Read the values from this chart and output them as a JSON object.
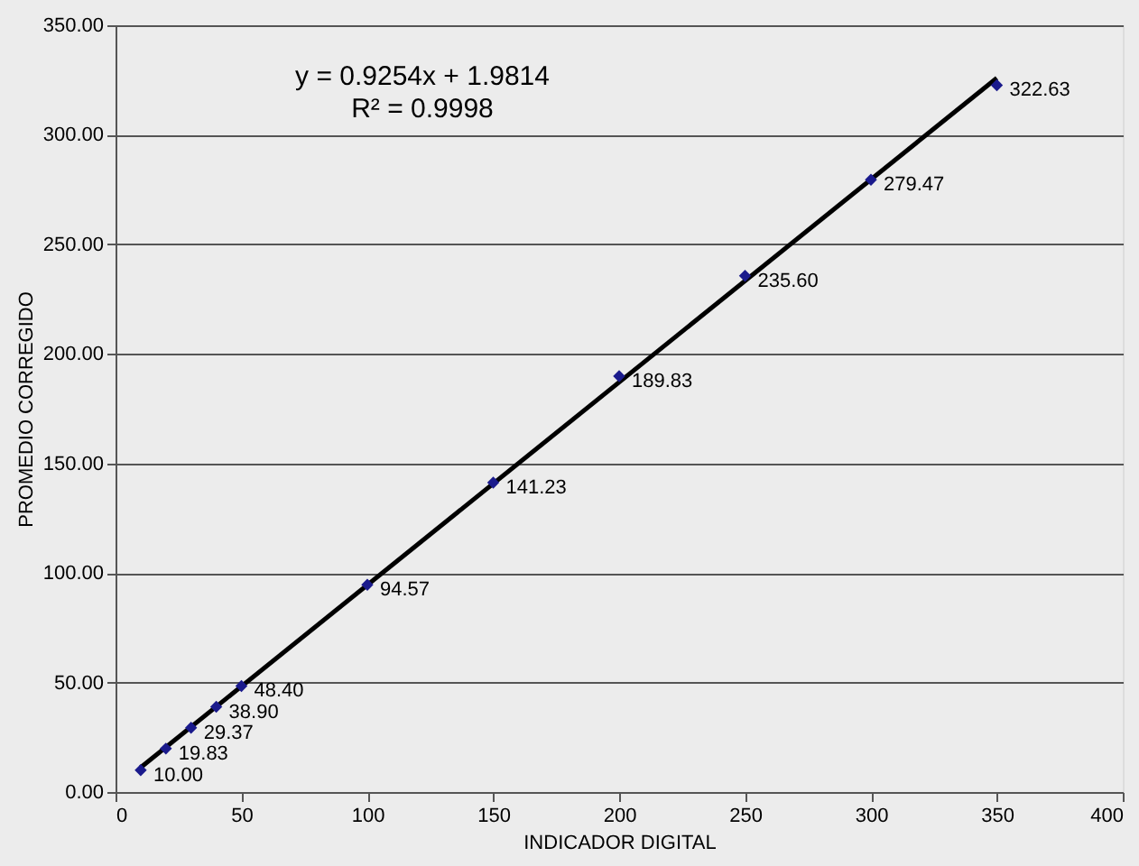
{
  "chart_data": {
    "type": "scatter",
    "xlabel": "INDICADOR DIGITAL",
    "ylabel": "PROMEDIO CORREGIDO",
    "xlim": [
      0,
      400
    ],
    "xticks": [
      0,
      50,
      100,
      150,
      200,
      250,
      300,
      350,
      400
    ],
    "ylim": [
      0,
      350
    ],
    "yticks": [
      {
        "value": 0,
        "label": "0.00"
      },
      {
        "value": 50,
        "label": "50.00"
      },
      {
        "value": 100,
        "label": "100.00"
      },
      {
        "value": 150,
        "label": "150.00"
      },
      {
        "value": 200,
        "label": "200.00"
      },
      {
        "value": 250,
        "label": "250.00"
      },
      {
        "value": 300,
        "label": "300.00"
      },
      {
        "value": 350,
        "label": "350.00"
      }
    ],
    "grid": "y",
    "series": [
      {
        "type": "line",
        "color": "#000000",
        "x": [
          10,
          350
        ],
        "values": [
          11.2,
          325.9
        ],
        "marker": "none",
        "line_style": "solid"
      },
      {
        "color": "#1a1a8c",
        "marker": "diamond",
        "x": [
          10,
          20,
          30,
          40,
          50,
          100,
          150,
          200,
          250,
          300,
          350
        ],
        "values": [
          10.0,
          19.83,
          29.37,
          38.9,
          48.4,
          94.57,
          141.23,
          189.83,
          235.6,
          279.47,
          322.63
        ],
        "value_labels": [
          "10.00",
          "19.83",
          "29.37",
          "38.90",
          "48.40",
          "94.57",
          "141.23",
          "189.83",
          "235.60",
          "279.47",
          "322.63"
        ]
      }
    ],
    "annotations": [
      "y = 0.9254x + 1.9814",
      "R² = 0.9998"
    ]
  }
}
